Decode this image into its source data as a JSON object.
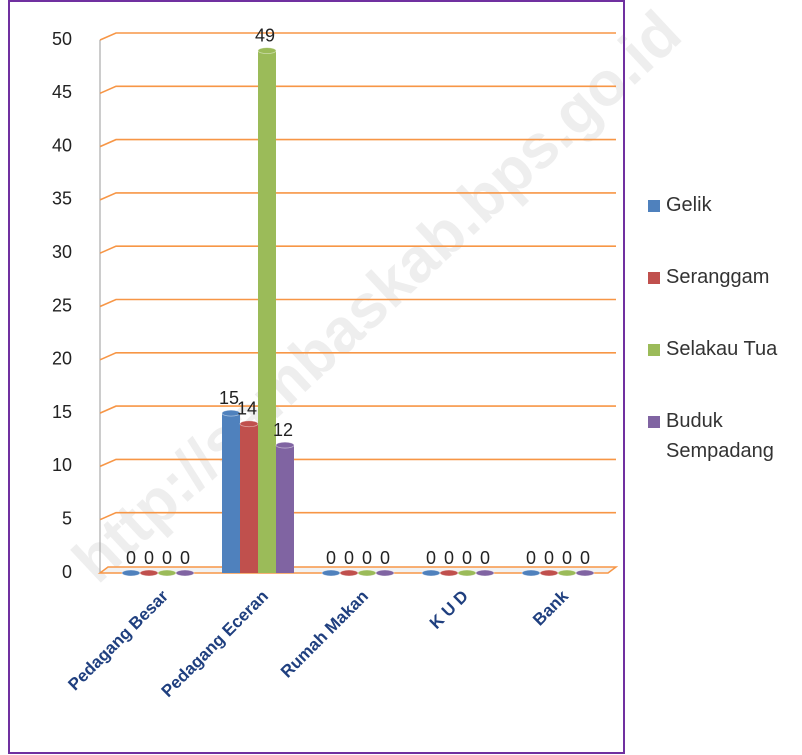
{
  "chart_data": {
    "type": "bar",
    "watermark": "http://sambaskab.bps.go.id",
    "categories": [
      "Pedagang Besar",
      "Pedagang Eceran",
      "Rumah Makan",
      "K U D",
      "Bank"
    ],
    "series": [
      {
        "name": "Gelik",
        "color": "#4f81bd",
        "values": [
          0,
          15,
          0,
          0,
          0
        ]
      },
      {
        "name": "Seranggam",
        "color": "#c0504d",
        "values": [
          0,
          14,
          0,
          0,
          0
        ]
      },
      {
        "name": "Selakau Tua",
        "color": "#9bbb59",
        "values": [
          0,
          49,
          0,
          0,
          0
        ]
      },
      {
        "name": "Buduk Sempadang",
        "color": "#8064a2",
        "values": [
          0,
          12,
          0,
          0,
          0
        ]
      }
    ],
    "ylim": [
      0,
      50
    ],
    "yticks": [
      0,
      5,
      10,
      15,
      20,
      25,
      30,
      35,
      40,
      45,
      50
    ],
    "grid": true,
    "grid_color": "#f79646",
    "legend": "right"
  }
}
